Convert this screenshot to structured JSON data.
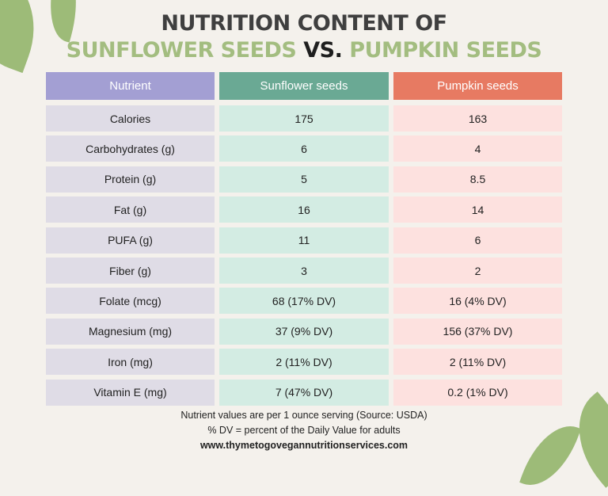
{
  "title": {
    "line1": "NUTRITION CONTENT OF",
    "part1": "SUNFLOWER SEEDS",
    "vs": "VS.",
    "part2": "PUMPKIN SEEDS"
  },
  "table": {
    "headers": [
      "Nutrient",
      "Sunflower seeds",
      "Pumpkin seeds"
    ],
    "rows": [
      [
        "Calories",
        "175",
        "163"
      ],
      [
        "Carbohydrates (g)",
        "6",
        "4"
      ],
      [
        "Protein (g)",
        "5",
        "8.5"
      ],
      [
        "Fat (g)",
        "16",
        "14"
      ],
      [
        "PUFA (g)",
        "11",
        "6"
      ],
      [
        "Fiber (g)",
        "3",
        "2"
      ],
      [
        "Folate (mcg)",
        "68 (17% DV)",
        "16 (4% DV)"
      ],
      [
        "Magnesium (mg)",
        "37 (9% DV)",
        "156 (37% DV)"
      ],
      [
        "Iron (mg)",
        "2 (11% DV)",
        "2 (11% DV)"
      ],
      [
        "Vitamin E (mg)",
        "7 (47% DV)",
        "0.2 (1% DV)"
      ]
    ]
  },
  "footer": {
    "note1": "Nutrient values are per 1 ounce serving (Source: USDA)",
    "note2": "% DV = percent of the Daily Value for adults",
    "website": "www.thymetogovegannutritionservices.com"
  },
  "colors": {
    "background": "#f4f1ec",
    "nutrient": "#a39fd3",
    "sunflower": "#6aa994",
    "pumpkin": "#e77a62",
    "title_green": "#a3bd80",
    "leaf": "#9dbb78"
  }
}
